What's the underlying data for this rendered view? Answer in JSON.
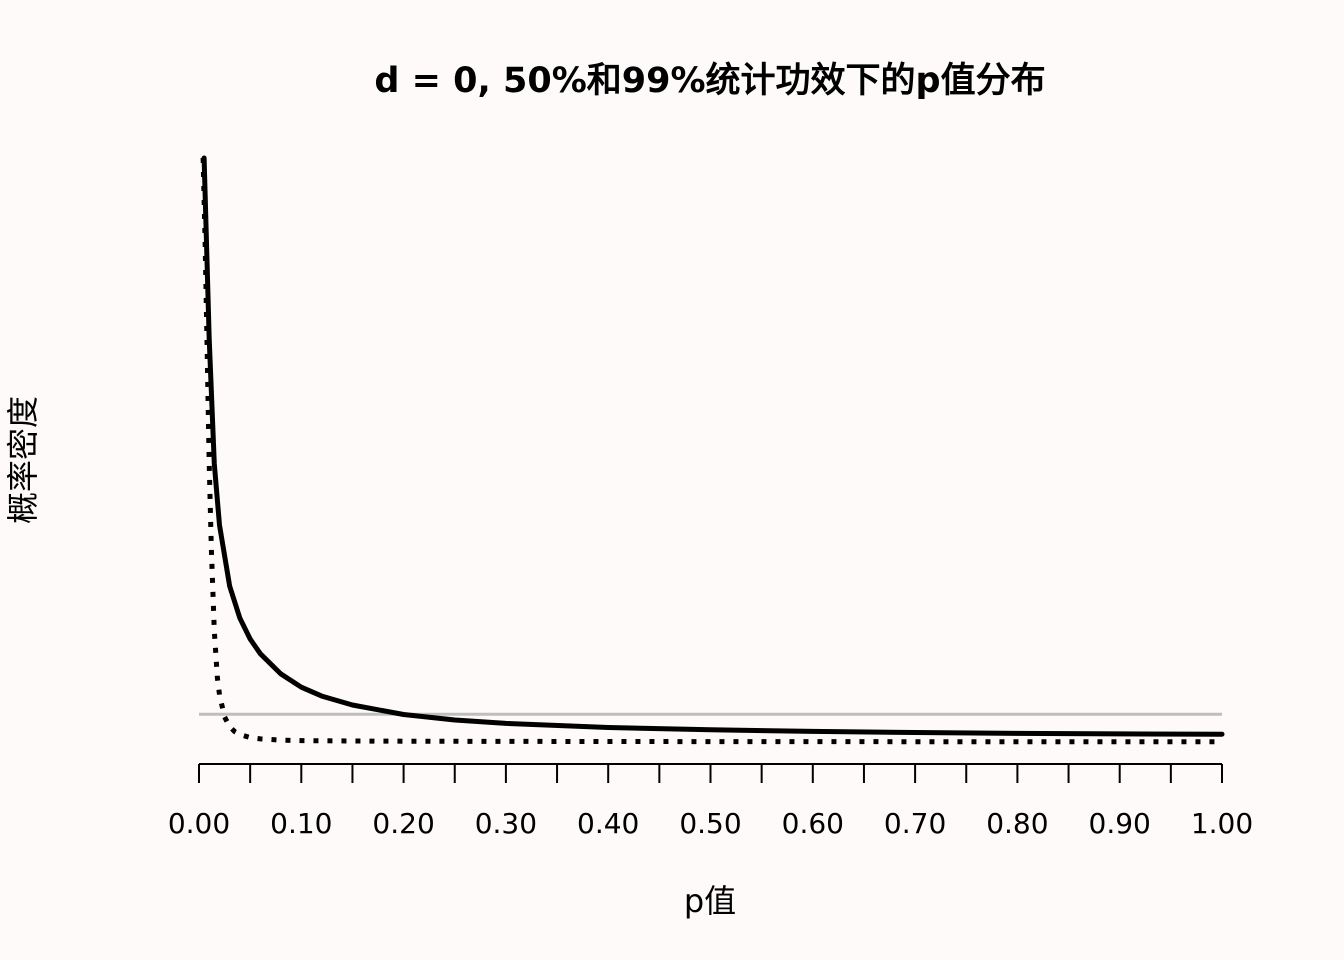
{
  "chart_data": {
    "type": "line",
    "title": "d = 0, 50%和99%统计功效下的p值分布",
    "xlabel": "p值",
    "ylabel": "概率密度",
    "xlim": [
      0,
      1
    ],
    "y_ticks_shown": false,
    "x_ticks": [
      0.0,
      0.05,
      0.1,
      0.15,
      0.2,
      0.25,
      0.3,
      0.35,
      0.4,
      0.45,
      0.5,
      0.55,
      0.6,
      0.65,
      0.7,
      0.75,
      0.8,
      0.85,
      0.9,
      0.95,
      1.0
    ],
    "x_tick_labels": [
      "0.00",
      "0.10",
      "0.20",
      "0.30",
      "0.40",
      "0.50",
      "0.60",
      "0.70",
      "0.80",
      "0.90",
      "1.00"
    ],
    "x_tick_label_values": [
      0.0,
      0.1,
      0.2,
      0.3,
      0.4,
      0.5,
      0.6,
      0.7,
      0.8,
      0.9,
      1.0
    ],
    "series": [
      {
        "style": "solid",
        "color": "#000000",
        "x": [
          0.005,
          0.01,
          0.015,
          0.02,
          0.03,
          0.04,
          0.05,
          0.06,
          0.08,
          0.1,
          0.12,
          0.15,
          0.2,
          0.25,
          0.3,
          0.4,
          0.5,
          0.6,
          0.7,
          0.8,
          0.9,
          1.0
        ],
        "y": [
          21.0,
          14.5,
          10.0,
          7.8,
          5.6,
          4.45,
          3.7,
          3.17,
          2.45,
          1.97,
          1.65,
          1.33,
          0.99,
          0.79,
          0.67,
          0.52,
          0.44,
          0.38,
          0.34,
          0.31,
          0.29,
          0.28
        ]
      },
      {
        "style": "dotted",
        "color": "#000000",
        "x": [
          0.004,
          0.006,
          0.008,
          0.01,
          0.012,
          0.015,
          0.018,
          0.02,
          0.025,
          0.03,
          0.035,
          0.04,
          0.05,
          0.06,
          0.08,
          0.1,
          0.15,
          0.2,
          0.3,
          0.5,
          0.7,
          1.0
        ],
        "y": [
          21.0,
          18.0,
          14.0,
          10.0,
          7.0,
          4.0,
          2.3,
          1.7,
          0.9,
          0.55,
          0.37,
          0.27,
          0.16,
          0.11,
          0.07,
          0.05,
          0.035,
          0.027,
          0.02,
          0.015,
          0.012,
          0.01
        ]
      }
    ],
    "reference_lines": [
      {
        "orientation": "horizontal",
        "y": 1.0,
        "color": "#bebebe"
      }
    ]
  }
}
